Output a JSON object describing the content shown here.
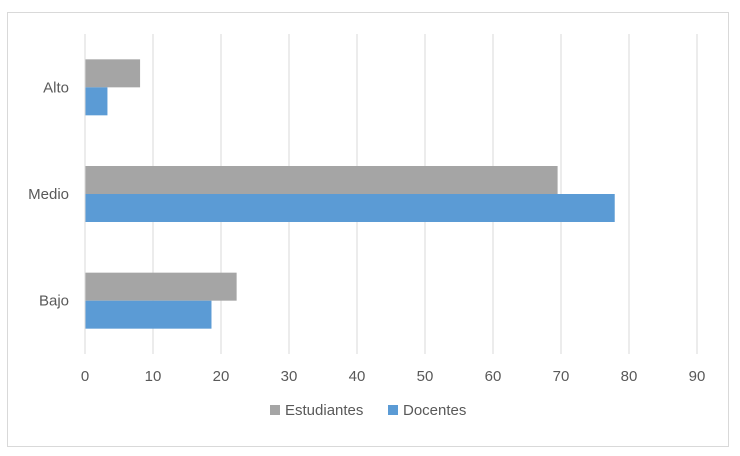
{
  "chart_data": {
    "type": "bar",
    "orientation": "horizontal",
    "categories": [
      "Bajo",
      "Medio",
      "Alto"
    ],
    "series": [
      {
        "name": "Estudiantes",
        "values": [
          22.3,
          69.5,
          8.1
        ],
        "color": "#a5a5a5"
      },
      {
        "name": "Docentes",
        "values": [
          18.6,
          77.9,
          3.3
        ],
        "color": "#5b9bd5"
      }
    ],
    "xlim": [
      0,
      90
    ],
    "x_ticks": [
      0,
      10,
      20,
      30,
      40,
      50,
      60,
      70,
      80,
      90
    ],
    "grid": true,
    "legend_position": "bottom",
    "title": "",
    "xlabel": "",
    "ylabel": ""
  }
}
